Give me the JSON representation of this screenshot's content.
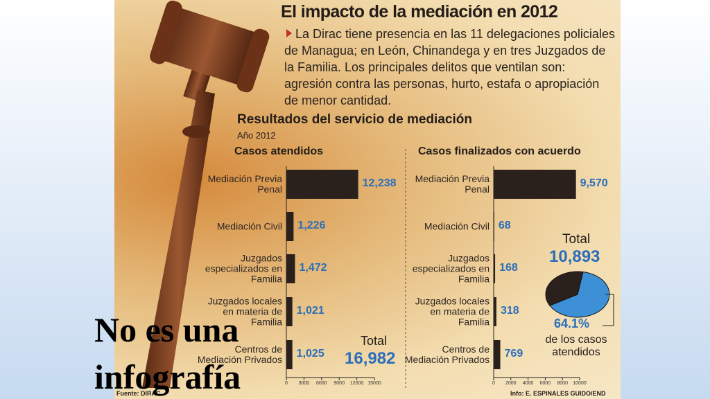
{
  "title": "El impacto de la mediación en 2012",
  "intro": "La Dirac tiene presencia en las 11 delegaciones policiales de Managua; en León, Chinandega y en tres Juzgados de la Familia. Los principales delitos que ventilan son: agresión contra las personas, hurto, estafa o apropiación de menor cantidad.",
  "subtitle": "Resultados del servicio de mediación",
  "year": "Año 2012",
  "source": "Fuente: DIRAC",
  "credit": "Info: E. ESPINALES GUIDO/END",
  "caption": "No es una infografía",
  "chart_data": [
    {
      "type": "bar",
      "orientation": "horizontal",
      "title": "Casos atendidos",
      "categories": [
        "Mediación Previa Penal",
        "Mediación Civil",
        "Juzgados especializados en Familia",
        "Juzgados locales en materia de Familia",
        "Centros de Mediación Privados"
      ],
      "values": [
        12238,
        1226,
        1472,
        1021,
        1025
      ],
      "value_labels": [
        "12,238",
        "1,226",
        "1,472",
        "1,021",
        "1,025"
      ],
      "color": "#2b211c",
      "xlim": [
        0,
        15000
      ],
      "xticks": [
        0,
        3000,
        6000,
        9000,
        12000,
        15000
      ],
      "annotations": [
        "Total",
        "16,982"
      ]
    },
    {
      "type": "bar",
      "orientation": "horizontal",
      "title": "Casos finalizados con acuerdo",
      "categories": [
        "Mediación Previa Penal",
        "Mediación Civil",
        "Juzgados especializados en Familia",
        "Juzgados locales en materia de Familia",
        "Centros de Mediación Privados"
      ],
      "values": [
        9570,
        68,
        168,
        318,
        769
      ],
      "value_labels": [
        "9,570",
        "68",
        "168",
        "318",
        "769"
      ],
      "color": "#2b211c",
      "xlim": [
        0,
        10000
      ],
      "xticks": [
        0,
        2000,
        4000,
        6000,
        8000,
        10000
      ]
    },
    {
      "type": "pie",
      "values": [
        64.1,
        35.9
      ],
      "value_labels": [
        "64.1%",
        null
      ],
      "colors": [
        "#3d8fd6",
        "#2b211c"
      ],
      "annotations": [
        "Total",
        "10,893",
        "de los casos atendidos"
      ]
    }
  ]
}
